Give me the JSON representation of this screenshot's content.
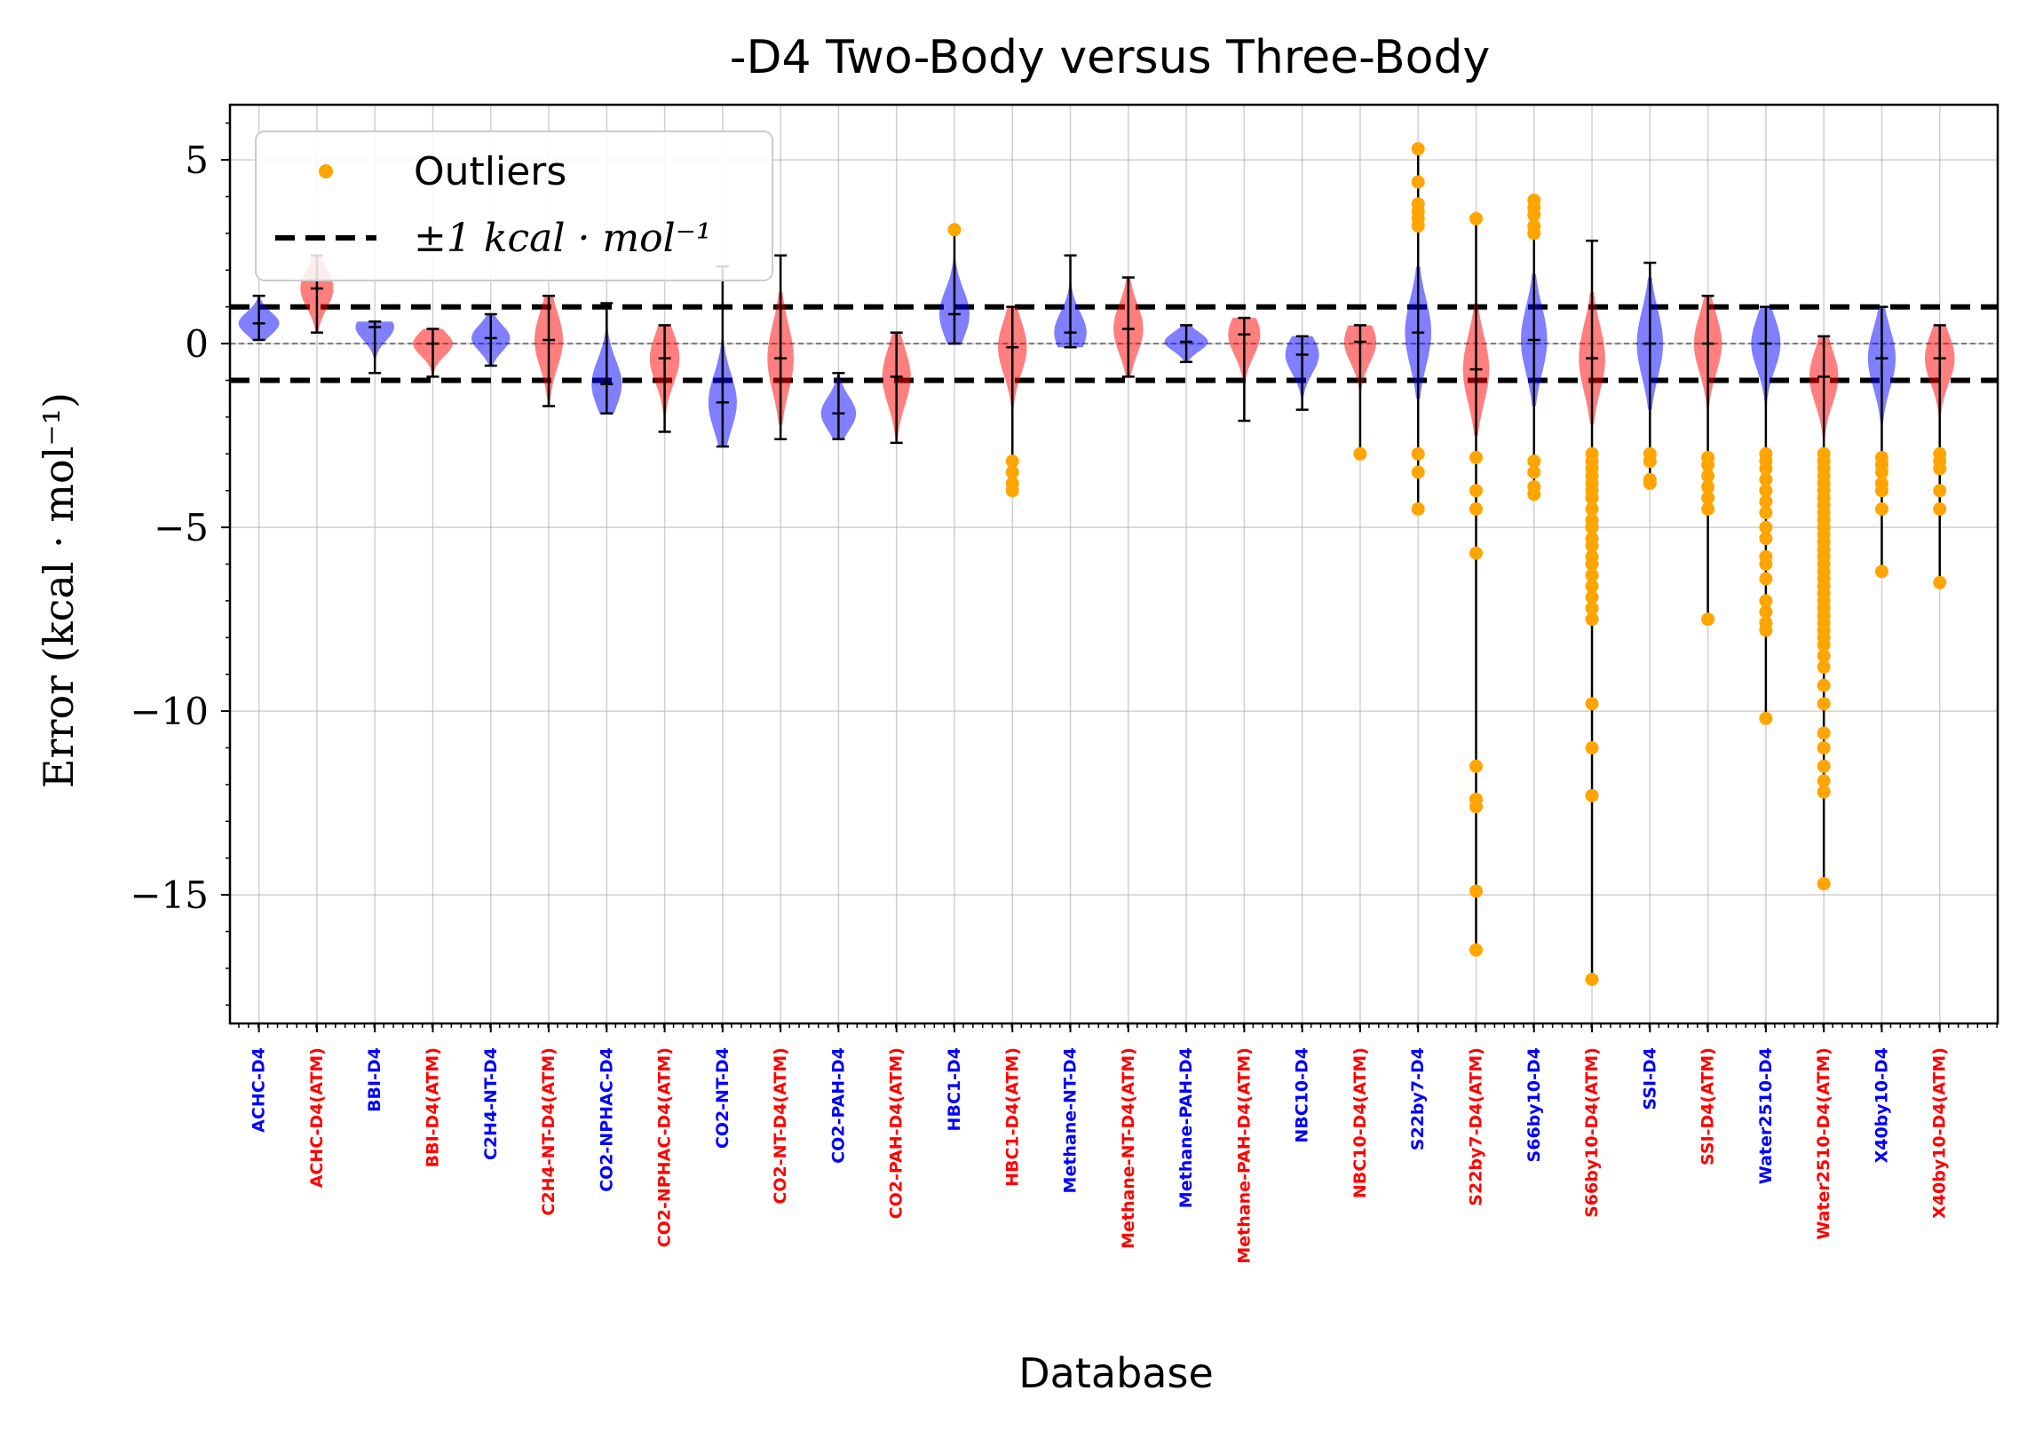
{
  "chart_data": {
    "type": "violin",
    "title": "-D4 Two-Body versus Three-Body",
    "xlabel": "Database",
    "ylabel": "Error (kcal · mol⁻¹)",
    "ylim": [
      -18.5,
      6.5
    ],
    "yticks": [
      5,
      0,
      -5,
      -10,
      -15
    ],
    "ytick_labels": [
      "5",
      "0",
      "−5",
      "−10",
      "−15"
    ],
    "grid": true,
    "legend_position": "top-left",
    "legend": {
      "outliers": "Outliers",
      "threshold": "±1 kcal · mol⁻¹"
    },
    "threshold_lines": [
      1,
      -1
    ],
    "zero_line": 0,
    "colors": {
      "twobody": "#0000ff",
      "threebody": "#ff0000",
      "outlier": "#ffa500",
      "whisker": "#000000"
    },
    "categories": [
      "ACHC-D4",
      "ACHC-D4(ATM)",
      "BBI-D4",
      "BBI-D4(ATM)",
      "C2H4-NT-D4",
      "C2H4-NT-D4(ATM)",
      "CO2-NPHAC-D4",
      "CO2-NPHAC-D4(ATM)",
      "CO2-NT-D4",
      "CO2-NT-D4(ATM)",
      "CO2-PAH-D4",
      "CO2-PAH-D4(ATM)",
      "HBC1-D4",
      "HBC1-D4(ATM)",
      "Methane-NT-D4",
      "Methane-NT-D4(ATM)",
      "Methane-PAH-D4",
      "Methane-PAH-D4(ATM)",
      "NBC10-D4",
      "NBC10-D4(ATM)",
      "S22by7-D4",
      "S22by7-D4(ATM)",
      "S66by10-D4",
      "S66by10-D4(ATM)",
      "SSI-D4",
      "SSI-D4(ATM)",
      "Water2510-D4",
      "Water2510-D4(ATM)",
      "X40by10-D4",
      "X40by10-D4(ATM)"
    ],
    "series": [
      {
        "min": 0.1,
        "max": 1.3,
        "median": 0.55,
        "outliers": []
      },
      {
        "min": 0.3,
        "max": 2.4,
        "median": 1.5,
        "outliers": []
      },
      {
        "min": -0.8,
        "max": 0.6,
        "median": 0.45,
        "outliers": []
      },
      {
        "min": -0.9,
        "max": 0.4,
        "median": 0.0,
        "outliers": []
      },
      {
        "min": -0.6,
        "max": 0.8,
        "median": 0.15,
        "outliers": []
      },
      {
        "min": -1.7,
        "max": 1.3,
        "median": 0.1,
        "outliers": []
      },
      {
        "min": -1.9,
        "max": 1.1,
        "median": -1.1,
        "outliers": []
      },
      {
        "min": -2.4,
        "max": 0.5,
        "median": -0.4,
        "outliers": []
      },
      {
        "min": -2.8,
        "max": 2.1,
        "median": -1.6,
        "outliers": []
      },
      {
        "min": -2.6,
        "max": 2.4,
        "median": -0.4,
        "outliers": []
      },
      {
        "min": -2.6,
        "max": -0.8,
        "median": -1.9,
        "outliers": []
      },
      {
        "min": -2.7,
        "max": 0.3,
        "median": -0.9,
        "outliers": []
      },
      {
        "min": 0.0,
        "max": 3.1,
        "median": 0.8,
        "outliers": [
          3.1
        ]
      },
      {
        "min": -4.0,
        "max": 1.0,
        "median": -0.1,
        "outliers": [
          -3.2,
          -3.5,
          -3.8,
          -4.0
        ]
      },
      {
        "min": -0.1,
        "max": 2.4,
        "median": 0.3,
        "outliers": []
      },
      {
        "min": -0.9,
        "max": 1.8,
        "median": 0.4,
        "outliers": []
      },
      {
        "min": -0.5,
        "max": 0.5,
        "median": 0.05,
        "outliers": []
      },
      {
        "min": -2.1,
        "max": 0.7,
        "median": 0.25,
        "outliers": []
      },
      {
        "min": -1.8,
        "max": 0.2,
        "median": -0.3,
        "outliers": []
      },
      {
        "min": -3.0,
        "max": 0.5,
        "median": 0.05,
        "outliers": [
          -3.0
        ]
      },
      {
        "min": -4.5,
        "max": 5.3,
        "median": 0.3,
        "outliers": [
          5.3,
          4.4,
          3.8,
          3.6,
          3.4,
          3.2,
          -3.0,
          -3.5,
          -4.5
        ]
      },
      {
        "min": -16.5,
        "max": 3.4,
        "median": -0.7,
        "outliers": [
          3.4,
          -3.1,
          -4.0,
          -4.5,
          -5.7,
          -11.5,
          -12.4,
          -12.6,
          -14.9,
          -16.5
        ]
      },
      {
        "min": -4.1,
        "max": 3.9,
        "median": 0.1,
        "outliers": [
          3.9,
          3.7,
          3.5,
          3.2,
          3.0,
          -3.2,
          -3.5,
          -3.9,
          -4.1
        ]
      },
      {
        "min": -17.3,
        "max": 2.8,
        "median": -0.4,
        "outliers": [
          -3.0,
          -3.2,
          -3.4,
          -3.6,
          -3.8,
          -4.0,
          -4.2,
          -4.5,
          -4.8,
          -5.0,
          -5.3,
          -5.5,
          -5.8,
          -6.0,
          -6.3,
          -6.6,
          -6.9,
          -7.2,
          -7.5,
          -9.8,
          -11.0,
          -12.3,
          -17.3
        ]
      },
      {
        "min": -3.8,
        "max": 2.2,
        "median": 0.0,
        "outliers": [
          -3.0,
          -3.2,
          -3.7,
          -3.8
        ]
      },
      {
        "min": -7.5,
        "max": 1.3,
        "median": 0.0,
        "outliers": [
          -3.1,
          -3.3,
          -3.6,
          -3.9,
          -4.2,
          -4.5,
          -7.5
        ]
      },
      {
        "min": -10.2,
        "max": 1.0,
        "median": 0.0,
        "outliers": [
          -3.0,
          -3.2,
          -3.4,
          -3.7,
          -4.0,
          -4.3,
          -4.6,
          -5.0,
          -5.3,
          -5.8,
          -6.0,
          -6.4,
          -7.0,
          -7.3,
          -7.6,
          -7.8,
          -10.2
        ]
      },
      {
        "min": -14.7,
        "max": 0.2,
        "median": -0.9,
        "outliers": [
          -3.0,
          -3.2,
          -3.4,
          -3.6,
          -3.8,
          -4.0,
          -4.2,
          -4.4,
          -4.6,
          -4.8,
          -5.0,
          -5.2,
          -5.4,
          -5.6,
          -5.8,
          -6.0,
          -6.2,
          -6.4,
          -6.6,
          -6.8,
          -7.0,
          -7.2,
          -7.4,
          -7.6,
          -7.8,
          -8.0,
          -8.2,
          -8.5,
          -8.8,
          -9.3,
          -9.8,
          -10.6,
          -11.0,
          -11.5,
          -11.9,
          -12.2,
          -14.7
        ]
      },
      {
        "min": -6.2,
        "max": 1.0,
        "median": -0.4,
        "outliers": [
          -3.1,
          -3.3,
          -3.5,
          -3.8,
          -4.0,
          -4.5,
          -6.2
        ]
      },
      {
        "min": -6.5,
        "max": 0.5,
        "median": -0.4,
        "outliers": [
          -3.0,
          -3.2,
          -3.4,
          -4.0,
          -4.5,
          -6.5
        ]
      }
    ]
  }
}
